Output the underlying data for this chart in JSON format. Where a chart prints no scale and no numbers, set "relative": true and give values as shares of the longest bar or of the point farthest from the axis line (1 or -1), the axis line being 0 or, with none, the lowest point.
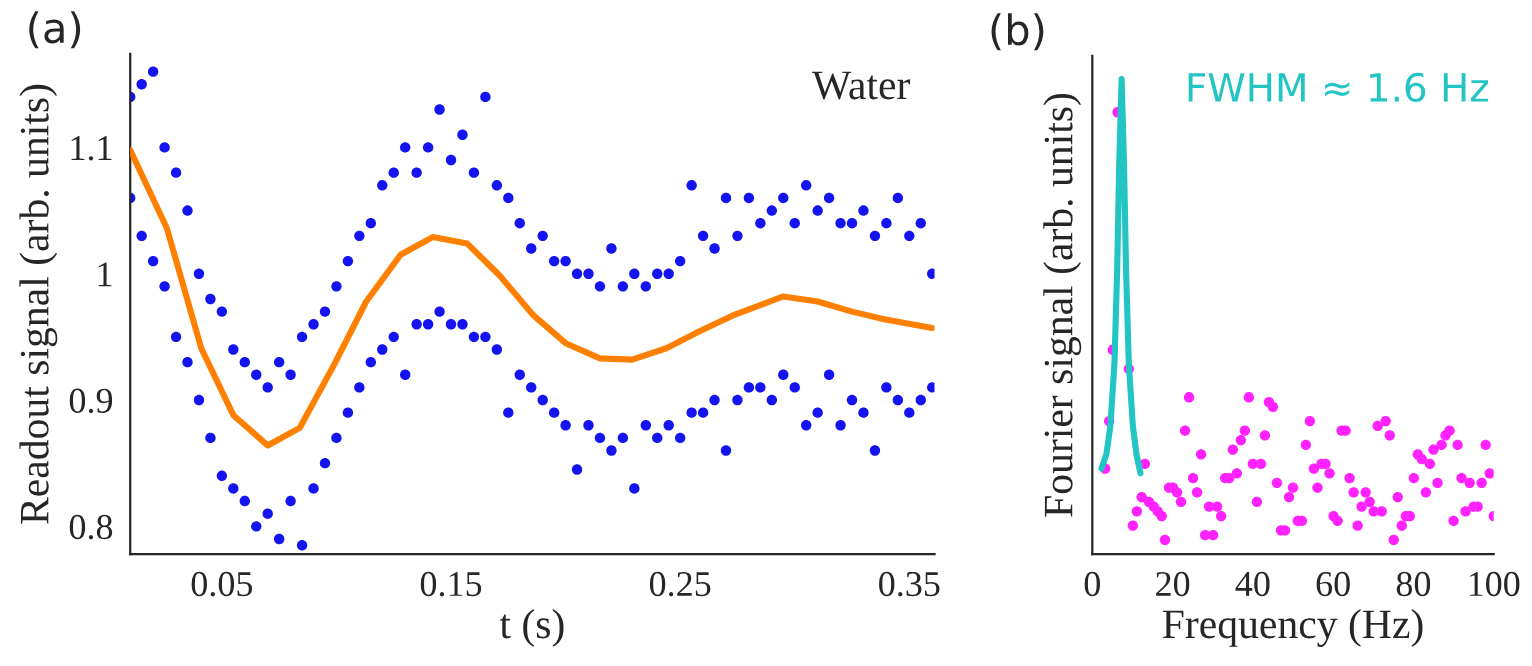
{
  "chart_data": [
    {
      "type": "scatter",
      "title": "(a)",
      "xlabel": "t (s)",
      "ylabel": "Readout signal (arb. units)",
      "xlim": [
        0.01,
        0.361
      ],
      "ylim": [
        0.778,
        1.174
      ],
      "xticks": [
        0.05,
        0.15,
        0.25,
        0.35
      ],
      "yticks": [
        0.8,
        0.9,
        1,
        1.1
      ],
      "annotations": [
        "Water"
      ],
      "grid": false,
      "series": [
        {
          "marker": "circle",
          "color": "#1414f0",
          "x": [
            0.01,
            0.01,
            0.015,
            0.015,
            0.02,
            0.02,
            0.025,
            0.025,
            0.03,
            0.03,
            0.035,
            0.035,
            0.04,
            0.04,
            0.045,
            0.045,
            0.05,
            0.05,
            0.055,
            0.055,
            0.06,
            0.06,
            0.065,
            0.065,
            0.07,
            0.07,
            0.075,
            0.075,
            0.08,
            0.08,
            0.085,
            0.085,
            0.09,
            0.09,
            0.095,
            0.095,
            0.1,
            0.1,
            0.105,
            0.105,
            0.11,
            0.11,
            0.115,
            0.115,
            0.12,
            0.12,
            0.125,
            0.125,
            0.13,
            0.13,
            0.135,
            0.135,
            0.14,
            0.14,
            0.145,
            0.145,
            0.15,
            0.15,
            0.155,
            0.155,
            0.16,
            0.16,
            0.165,
            0.165,
            0.17,
            0.17,
            0.175,
            0.175,
            0.18,
            0.18,
            0.185,
            0.185,
            0.19,
            0.19,
            0.195,
            0.195,
            0.2,
            0.2,
            0.205,
            0.205,
            0.21,
            0.21,
            0.215,
            0.215,
            0.22,
            0.22,
            0.225,
            0.225,
            0.23,
            0.23,
            0.235,
            0.235,
            0.24,
            0.24,
            0.245,
            0.245,
            0.25,
            0.25,
            0.255,
            0.255,
            0.26,
            0.26,
            0.265,
            0.265,
            0.27,
            0.27,
            0.275,
            0.275,
            0.28,
            0.28,
            0.285,
            0.285,
            0.29,
            0.29,
            0.295,
            0.295,
            0.3,
            0.3,
            0.305,
            0.305,
            0.31,
            0.31,
            0.315,
            0.315,
            0.32,
            0.32,
            0.325,
            0.325,
            0.33,
            0.33,
            0.335,
            0.335,
            0.34,
            0.34,
            0.345,
            0.345,
            0.35,
            0.35,
            0.355,
            0.355,
            0.36,
            0.36
          ],
          "values": [
            1.14,
            1.06,
            1.15,
            1.03,
            1.16,
            1.01,
            1.1,
            0.99,
            1.08,
            0.95,
            1.05,
            0.93,
            1.0,
            0.9,
            0.98,
            0.87,
            0.97,
            0.84,
            0.94,
            0.83,
            0.93,
            0.82,
            0.92,
            0.8,
            0.91,
            0.81,
            0.93,
            0.79,
            0.92,
            0.82,
            0.95,
            0.785,
            0.96,
            0.83,
            0.97,
            0.85,
            0.99,
            0.87,
            1.01,
            0.89,
            1.03,
            0.91,
            1.04,
            0.93,
            1.07,
            0.94,
            1.08,
            0.95,
            1.1,
            0.92,
            1.08,
            0.96,
            1.1,
            0.96,
            1.13,
            0.97,
            1.09,
            0.96,
            1.11,
            0.96,
            1.08,
            0.95,
            1.14,
            0.95,
            1.07,
            0.94,
            1.06,
            0.89,
            1.04,
            0.92,
            1.02,
            0.91,
            1.03,
            0.9,
            1.01,
            0.89,
            1.01,
            0.88,
            1.0,
            0.845,
            1.0,
            0.88,
            0.99,
            0.87,
            1.02,
            0.86,
            0.99,
            0.87,
            1.0,
            0.83,
            0.99,
            0.88,
            1.0,
            0.87,
            1.0,
            0.88,
            1.01,
            0.87,
            1.07,
            0.89,
            1.03,
            0.89,
            1.02,
            0.9,
            1.06,
            0.86,
            1.03,
            0.9,
            1.06,
            0.91,
            1.04,
            0.91,
            1.05,
            0.9,
            1.06,
            0.92,
            1.04,
            0.91,
            1.07,
            0.88,
            1.05,
            0.89,
            1.06,
            0.92,
            1.04,
            0.88,
            1.04,
            0.9,
            1.05,
            0.89,
            1.03,
            0.86,
            1.04,
            0.91,
            1.06,
            0.9,
            1.03,
            0.89,
            1.04,
            0.9,
            1.0,
            0.91
          ]
        },
        {
          "type": "line",
          "color": "#ff8000",
          "x": [
            0.01,
            0.026,
            0.041,
            0.055,
            0.07,
            0.084,
            0.099,
            0.113,
            0.128,
            0.142,
            0.157,
            0.171,
            0.186,
            0.2,
            0.215,
            0.229,
            0.244,
            0.258,
            0.273,
            0.295,
            0.31,
            0.325,
            0.339,
            0.36
          ],
          "values": [
            1.098,
            1.036,
            0.941,
            0.888,
            0.864,
            0.878,
            0.928,
            0.978,
            1.015,
            1.029,
            1.024,
            0.999,
            0.967,
            0.945,
            0.933,
            0.932,
            0.941,
            0.954,
            0.967,
            0.982,
            0.978,
            0.97,
            0.964,
            0.957
          ]
        }
      ]
    },
    {
      "type": "scatter",
      "title": "(b)",
      "xlabel": "Frequency (Hz)",
      "ylabel": "Fourier signal (arb. units)",
      "xlim": [
        0,
        100
      ],
      "xticks": [
        0,
        20,
        40,
        60,
        80,
        100
      ],
      "relative": true,
      "tick_labels": "x",
      "grid": false,
      "series": [
        {
          "type": "line",
          "name": "FWHM ≈ 1.6 Hz",
          "color": "#22c4c4",
          "x": [
            2.3,
            3.5,
            4.5,
            5.5,
            6.2,
            6.7,
            7.3,
            7.9,
            8.4,
            9.1,
            10.1,
            11.0,
            12.0
          ],
          "values": [
            0.18,
            0.21,
            0.27,
            0.4,
            0.6,
            0.82,
            1.0,
            0.82,
            0.6,
            0.4,
            0.27,
            0.21,
            0.17
          ]
        },
        {
          "marker": "circle",
          "color": "#ff22ff",
          "x": [
            3.2,
            4.2,
            5.1,
            6.3,
            9.1,
            10.1,
            11.1,
            12.3,
            13.1,
            14.1,
            15.3,
            16.3,
            17.3,
            18.1,
            19.1,
            20.1,
            21.1,
            22.1,
            23.1,
            24.1,
            25.1,
            26.1,
            27.1,
            28.1,
            29.1,
            30.1,
            31.1,
            32.1,
            33.1,
            34.1,
            35.0,
            36.0,
            37.0,
            38.0,
            39.0,
            40.0,
            41.0,
            42.0,
            43.0,
            44.0,
            45.0,
            46.0,
            47.0,
            48.0,
            49.0,
            50.0,
            51.2,
            52.2,
            53.2,
            54.2,
            55.2,
            56.1,
            57.1,
            58.1,
            59.1,
            60.1,
            61.1,
            62.1,
            63.1,
            64.1,
            65.1,
            66.1,
            67.1,
            68.1,
            69.1,
            70.1,
            71.1,
            72.1,
            73.1,
            74.1,
            75.1,
            76.1,
            77.1,
            78.1,
            79.1,
            80.1,
            81.1,
            82.1,
            83.1,
            84.1,
            85.0,
            86.0,
            87.0,
            88.0,
            89.0,
            90.0,
            91.0,
            92.0,
            93.0,
            94.0,
            95.0,
            96.0,
            97.0,
            98.0,
            99.0,
            100.0
          ],
          "values": [
            0.18,
            0.28,
            0.43,
            0.93,
            0.39,
            0.06,
            0.09,
            0.12,
            0.19,
            0.11,
            0.1,
            0.09,
            0.08,
            0.03,
            0.14,
            0.14,
            0.13,
            0.11,
            0.26,
            0.33,
            0.16,
            0.13,
            0.21,
            0.04,
            0.1,
            0.04,
            0.1,
            0.08,
            0.16,
            0.16,
            0.22,
            0.17,
            0.24,
            0.26,
            0.33,
            0.19,
            0.11,
            0.19,
            0.25,
            0.32,
            0.31,
            0.15,
            0.05,
            0.05,
            0.12,
            0.14,
            0.07,
            0.07,
            0.23,
            0.28,
            0.18,
            0.14,
            0.19,
            0.19,
            0.17,
            0.08,
            0.07,
            0.26,
            0.26,
            0.16,
            0.13,
            0.06,
            0.1,
            0.13,
            0.11,
            0.09,
            0.27,
            0.09,
            0.28,
            0.25,
            0.03,
            0.12,
            0.06,
            0.08,
            0.08,
            0.16,
            0.21,
            0.2,
            0.13,
            0.19,
            0.22,
            0.15,
            0.23,
            0.25,
            0.26,
            0.07,
            0.23,
            0.16,
            0.09,
            0.15,
            0.1,
            0.1,
            0.15,
            0.23,
            0.17,
            0.08
          ]
        }
      ]
    }
  ]
}
